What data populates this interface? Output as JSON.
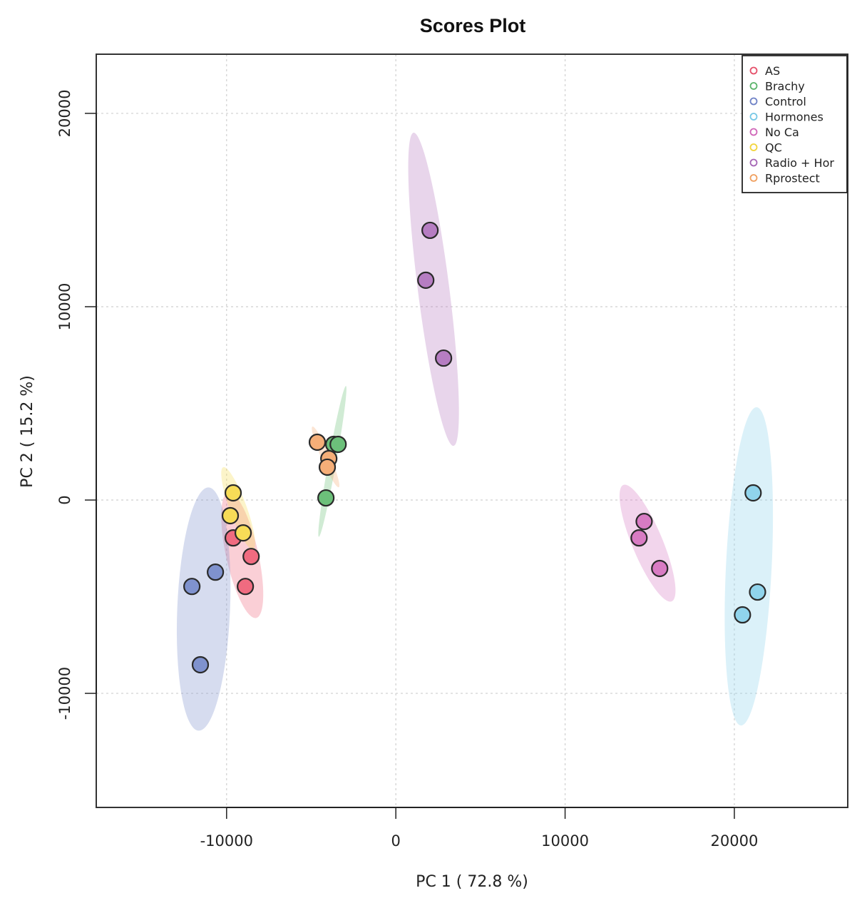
{
  "chart_data": {
    "type": "scatter",
    "title": "Scores Plot",
    "xlabel": "PC 1 ( 72.8 %)",
    "ylabel": "PC 2 ( 15.2 %)",
    "xlim": [
      -17700,
      26700
    ],
    "ylim": [
      -15900,
      23060
    ],
    "xticks": [
      -10000,
      0,
      10000,
      20000
    ],
    "yticks": [
      -10000,
      0,
      10000,
      20000
    ],
    "xtick_labels": [
      "-10000",
      "0",
      "10000",
      "20000"
    ],
    "ytick_labels": [
      "-10000",
      "0",
      "10000",
      "20000"
    ],
    "grid": true,
    "legend_position": "top-right",
    "series": [
      {
        "name": "AS",
        "color": "#E5506A",
        "fill": "#F06B80",
        "points": [
          [
            -9610,
            -1960
          ],
          [
            -8550,
            -2920
          ],
          [
            -8890,
            -4470
          ]
        ],
        "ellipse": {
          "p1": [
            -9900,
            400
          ],
          "p2": [
            -8250,
            -6100
          ],
          "half_width": 950
        }
      },
      {
        "name": "Brachy",
        "color": "#5DB56C",
        "fill": "#6CC07A",
        "points": [
          [
            -3670,
            2880
          ],
          [
            -3410,
            2880
          ],
          [
            -4130,
            110
          ]
        ],
        "ellipse": {
          "p1": [
            -2950,
            5900
          ],
          "p2": [
            -4550,
            -1900
          ],
          "half_width": 230
        }
      },
      {
        "name": "Control",
        "color": "#6F82C6",
        "fill": "#7F92CE",
        "points": [
          [
            -12050,
            -4470
          ],
          [
            -10660,
            -3730
          ],
          [
            -11550,
            -8520
          ]
        ],
        "ellipse": {
          "p1": [
            -11060,
            650
          ],
          "p2": [
            -11650,
            -11930
          ],
          "half_width": 1560
        }
      },
      {
        "name": "Hormones",
        "color": "#78C8E6",
        "fill": "#90D4EC",
        "points": [
          [
            21110,
            370
          ],
          [
            21370,
            -4760
          ],
          [
            20480,
            -5940
          ]
        ],
        "ellipse": {
          "p1": [
            21320,
            4800
          ],
          "p2": [
            20390,
            -11660
          ],
          "half_width": 1350
        }
      },
      {
        "name": "No Ca",
        "color": "#D066B8",
        "fill": "#D87BC3",
        "points": [
          [
            14670,
            -1110
          ],
          [
            14370,
            -1960
          ],
          [
            15590,
            -3540
          ]
        ],
        "ellipse": {
          "p1": [
            13440,
            780
          ],
          "p2": [
            16300,
            -5240
          ],
          "half_width": 900
        }
      },
      {
        "name": "QC",
        "color": "#F2D43C",
        "fill": "#F7DC57",
        "points": [
          [
            -9610,
            370
          ],
          [
            -9780,
            -810
          ],
          [
            -9020,
            -1700
          ]
        ],
        "ellipse": {
          "p1": [
            -10200,
            1700
          ],
          "p2": [
            -8430,
            -2550
          ],
          "half_width": 500
        }
      },
      {
        "name": "Radio + Hor",
        "color": "#A566B5",
        "fill": "#B67DC2",
        "points": [
          [
            2020,
            13950
          ],
          [
            1770,
            11370
          ],
          [
            2820,
            7340
          ]
        ],
        "ellipse": {
          "p1": [
            1050,
            19000
          ],
          "p2": [
            3410,
            2800
          ],
          "half_width": 930
        }
      },
      {
        "name": "Rprostect",
        "color": "#F0A060",
        "fill": "#F5AE78",
        "points": [
          [
            -4640,
            2990
          ],
          [
            -3960,
            2140
          ],
          [
            -4050,
            1700
          ]
        ],
        "ellipse": {
          "p1": [
            -4930,
            3800
          ],
          "p2": [
            -3370,
            660
          ],
          "half_width": 260
        }
      }
    ]
  }
}
